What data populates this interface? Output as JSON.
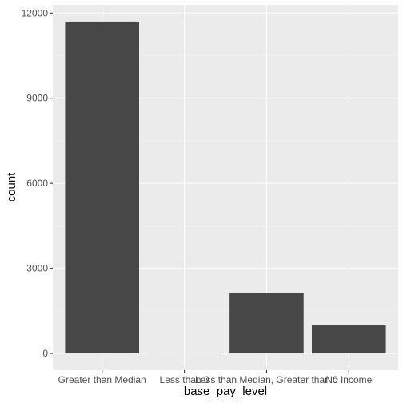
{
  "chart_data": {
    "type": "bar",
    "categories": [
      "Greater than Median",
      "Less than 0",
      "Less than Median, Greater than 0",
      "No Income"
    ],
    "values": [
      11700,
      15,
      2130,
      990
    ],
    "xlabel": "base_pay_level",
    "ylabel": "count",
    "ylim": [
      -590,
      12290
    ],
    "yticks": [
      0,
      3000,
      6000,
      9000,
      12000
    ],
    "ytick_labels": [
      "0",
      "3000",
      "6000",
      "9000",
      "12000"
    ],
    "grid": true,
    "legend": "none",
    "colors": {
      "panel": "#ebebeb",
      "grid_major": "#ffffff",
      "bar": "#474747"
    }
  }
}
